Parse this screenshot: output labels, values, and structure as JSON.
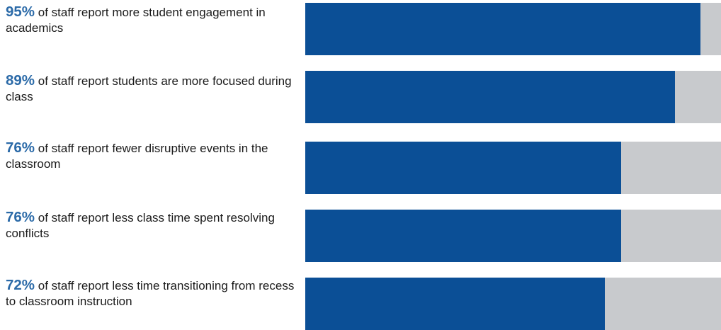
{
  "colors": {
    "accent": "#0b4f96",
    "track": "#c8cacd",
    "percent_text": "#2b6aa8"
  },
  "chart_data": {
    "type": "bar",
    "orientation": "horizontal",
    "xlim": [
      0,
      100
    ],
    "grid": false,
    "legend": "none",
    "items": [
      {
        "percent_label": "95%",
        "value": 95,
        "text": "of staff report more student engagement in academics"
      },
      {
        "percent_label": "89%",
        "value": 89,
        "text": "of staff report students are more focused during class"
      },
      {
        "percent_label": "76%",
        "value": 76,
        "text": "of staff report fewer disruptive events in the classroom"
      },
      {
        "percent_label": "76%",
        "value": 76,
        "text": "of staff report less class time spent resolving conflicts"
      },
      {
        "percent_label": "72%",
        "value": 72,
        "text": "of staff report less time transitioning from recess to classroom instruction"
      }
    ]
  }
}
